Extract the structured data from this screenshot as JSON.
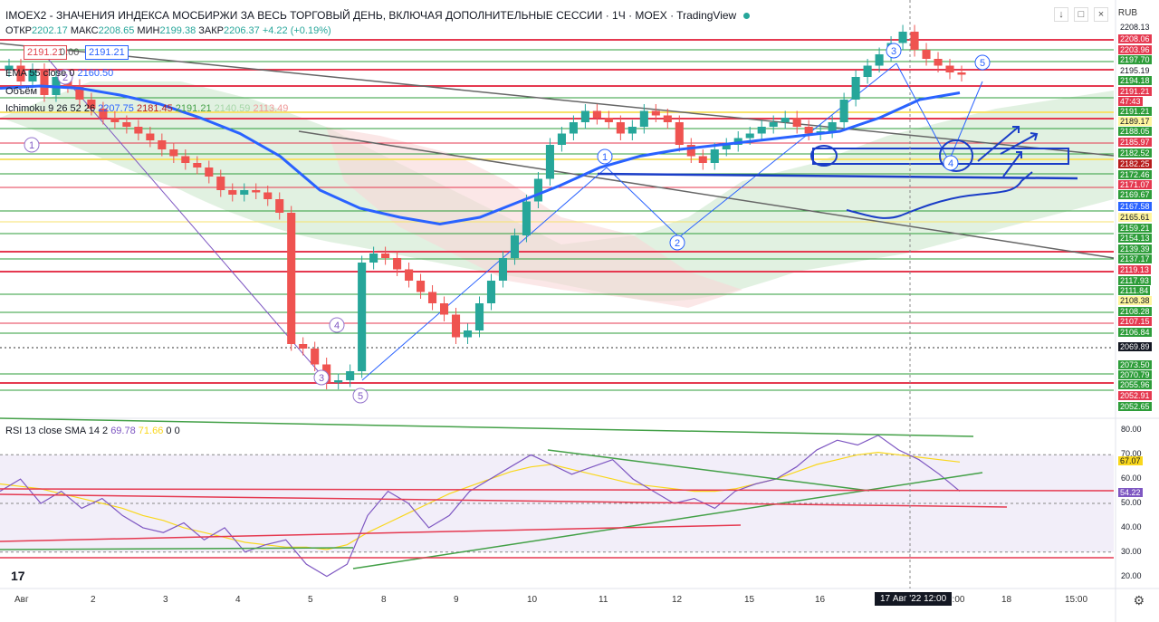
{
  "header": {
    "title": "IMOEX2 - ЗНАЧЕНИЯ ИНДЕКСА МОСБИРЖИ ЗА ВЕСЬ ТОРГОВЫЙ ДЕНЬ, ВКЛЮЧАЯ ДОПОЛНИТЕЛЬНЫЕ СЕССИИ · 1Ч · MOEX · TradingView",
    "ohlc": [
      {
        "k": "ОТКР",
        "v": "2202.17"
      },
      {
        "k": "МАКС",
        "v": "2208.65"
      },
      {
        "k": "МИН",
        "v": "2199.38"
      },
      {
        "k": "ЗАКР",
        "v": "2206.37"
      },
      {
        "k": "",
        "v": "+4.22 (+0.19%)"
      }
    ],
    "sell_price": "2191.21",
    "spread": "0.00",
    "buy_price": "2191.21",
    "ema_label": "EMA 55 close 0",
    "ema_value": "2160.50",
    "volume_label": "Объём",
    "ichimoku_label": "Ichimoku 9 26 52 26",
    "ichimoku_values": [
      "2207.75",
      "2181.45",
      "2191.21",
      "2140.59",
      "2113.49"
    ],
    "currency": "RUB"
  },
  "rsi_legend": {
    "label": "RSI 13 close SMA 14 2",
    "rsi": "69.78",
    "sma": "71.66",
    "z1": "0",
    "z2": "0"
  },
  "price_axis": [
    {
      "label": "2208.13",
      "kind": "plain"
    },
    {
      "label": "2208.06",
      "kind": "red"
    },
    {
      "label": "2203.96",
      "kind": "red"
    },
    {
      "label": "2197.70",
      "kind": "green"
    },
    {
      "label": "2195.19",
      "kind": "plain"
    },
    {
      "label": "2194.18",
      "kind": "green"
    },
    {
      "label": "2191.21",
      "kind": "red"
    },
    {
      "label": "47:43",
      "kind": "red"
    },
    {
      "label": "2191.21",
      "kind": "green"
    },
    {
      "label": "2189.17",
      "kind": "yellow"
    },
    {
      "label": "2188.05",
      "kind": "green"
    },
    {
      "label": "2185.97",
      "kind": "red"
    },
    {
      "label": "2182.52",
      "kind": "green"
    },
    {
      "label": "2182.25",
      "kind": "dark"
    },
    {
      "label": "2172.46",
      "kind": "green"
    },
    {
      "label": "2171.07",
      "kind": "red"
    },
    {
      "label": "2169.67",
      "kind": "green"
    },
    {
      "label": "2167.58",
      "kind": "blue"
    },
    {
      "label": "2165.61",
      "kind": "yellow"
    },
    {
      "label": "2159.21",
      "kind": "green"
    },
    {
      "label": "2154.13",
      "kind": "green"
    },
    {
      "label": "2139.39",
      "kind": "green"
    },
    {
      "label": "2137.17",
      "kind": "green"
    },
    {
      "label": "2119.13",
      "kind": "red"
    },
    {
      "label": "2117.93",
      "kind": "green"
    },
    {
      "label": "2111.84",
      "kind": "green"
    },
    {
      "label": "2108.38",
      "kind": "yellow"
    },
    {
      "label": "2108.28",
      "kind": "green"
    },
    {
      "label": "2107.15",
      "kind": "red"
    },
    {
      "label": "2106.84",
      "kind": "green"
    },
    {
      "label": "2069.89",
      "kind": "black"
    },
    {
      "label": "2073.50",
      "kind": "green"
    },
    {
      "label": "2070.79",
      "kind": "green"
    },
    {
      "label": "2055.96",
      "kind": "green"
    },
    {
      "label": "2052.91",
      "kind": "red"
    },
    {
      "label": "2052.65",
      "kind": "green"
    }
  ],
  "rsi_axis": {
    "ticks": [
      "80.00",
      "70.00",
      "60.00",
      "50.00",
      "40.00",
      "30.00",
      "20.00"
    ],
    "value_sma": "67.07",
    "value_rsi": "54.22"
  },
  "time_axis": {
    "labels": [
      "Авг",
      "2",
      "3",
      "4",
      "5",
      "8",
      "9",
      "10",
      "11",
      "12",
      "15",
      "16",
      "7:00",
      "18",
      "15:00"
    ],
    "cursor": "17 Авг '22 12:00"
  },
  "wave_labels": [
    "1",
    "2",
    "3",
    "4",
    "5",
    "1",
    "2",
    "3",
    "4",
    "5",
    "3",
    "5",
    "2",
    "3",
    "4",
    "5"
  ],
  "chart_data": {
    "type": "candlestick",
    "title": "IMOEX2 - ЗНАЧЕНИЯ ИНДЕКСА МОСБИРЖИ ЗА ВЕСЬ ТОРГОВЫЙ ДЕНЬ, ВКЛЮЧАЯ ДОПОЛНИТЕЛЬНЫЕ СЕССИИ · 1Ч · MOEX",
    "x": [
      "Авг",
      "2",
      "3",
      "4",
      "5",
      "8",
      "9",
      "10",
      "11",
      "12",
      "15",
      "16",
      "17",
      "18"
    ],
    "ylim": [
      2040,
      2212
    ],
    "close_series": [
      2195,
      2188,
      2193,
      2182,
      2190,
      2186,
      2180,
      2176,
      2172,
      2170,
      2168,
      2165,
      2162,
      2158,
      2155,
      2152,
      2150,
      2146,
      2140,
      2138,
      2140,
      2139,
      2136,
      2130,
      2072,
      2070,
      2063,
      2055,
      2056,
      2060,
      2108,
      2112,
      2110,
      2105,
      2100,
      2095,
      2090,
      2085,
      2075,
      2078,
      2090,
      2100,
      2110,
      2120,
      2135,
      2145,
      2160,
      2165,
      2170,
      2175,
      2172,
      2170,
      2165,
      2168,
      2175,
      2173,
      2170,
      2160,
      2155,
      2152,
      2158,
      2160,
      2163,
      2165,
      2168,
      2170,
      2172,
      2168,
      2165,
      2166,
      2170,
      2180,
      2190,
      2195,
      2200,
      2205,
      2210,
      2202,
      2198,
      2195,
      2192,
      2191
    ],
    "ema55": [
      2185,
      2186,
      2185,
      2182,
      2178,
      2172,
      2165,
      2155,
      2140,
      2132,
      2128,
      2125,
      2128,
      2135,
      2142,
      2150,
      2155,
      2158,
      2160,
      2162,
      2164,
      2166,
      2172,
      2180,
      2183
    ],
    "rsi": [
      55,
      60,
      50,
      55,
      48,
      52,
      45,
      40,
      38,
      42,
      35,
      40,
      30,
      33,
      35,
      25,
      20,
      25,
      45,
      55,
      50,
      40,
      45,
      55,
      60,
      65,
      70,
      66,
      62,
      65,
      68,
      60,
      55,
      50,
      52,
      48,
      55,
      58,
      60,
      65,
      72,
      76,
      74,
      78,
      72,
      68,
      62,
      55
    ],
    "rsi_sma": [
      58,
      57,
      56,
      54,
      52,
      50,
      48,
      45,
      43,
      40,
      38,
      36,
      34,
      33,
      32,
      32,
      31,
      33,
      38,
      42,
      46,
      50,
      54,
      57,
      60,
      63,
      65,
      66,
      64,
      62,
      60,
      58,
      57,
      56,
      55,
      55,
      56,
      58,
      60,
      63,
      66,
      68,
      70,
      71,
      70,
      69,
      68,
      67
    ],
    "rsi_ylim": [
      15,
      85
    ]
  },
  "colors": {
    "up": "#26a69a",
    "down": "#ef5350",
    "ema": "#2962ff",
    "cloud_green": "#c8e6c9",
    "cloud_red": "#f8d7d7",
    "hline_green": "#2e9d3a",
    "hline_red": "#e53950",
    "rsi_fill": "#ede7f6"
  }
}
